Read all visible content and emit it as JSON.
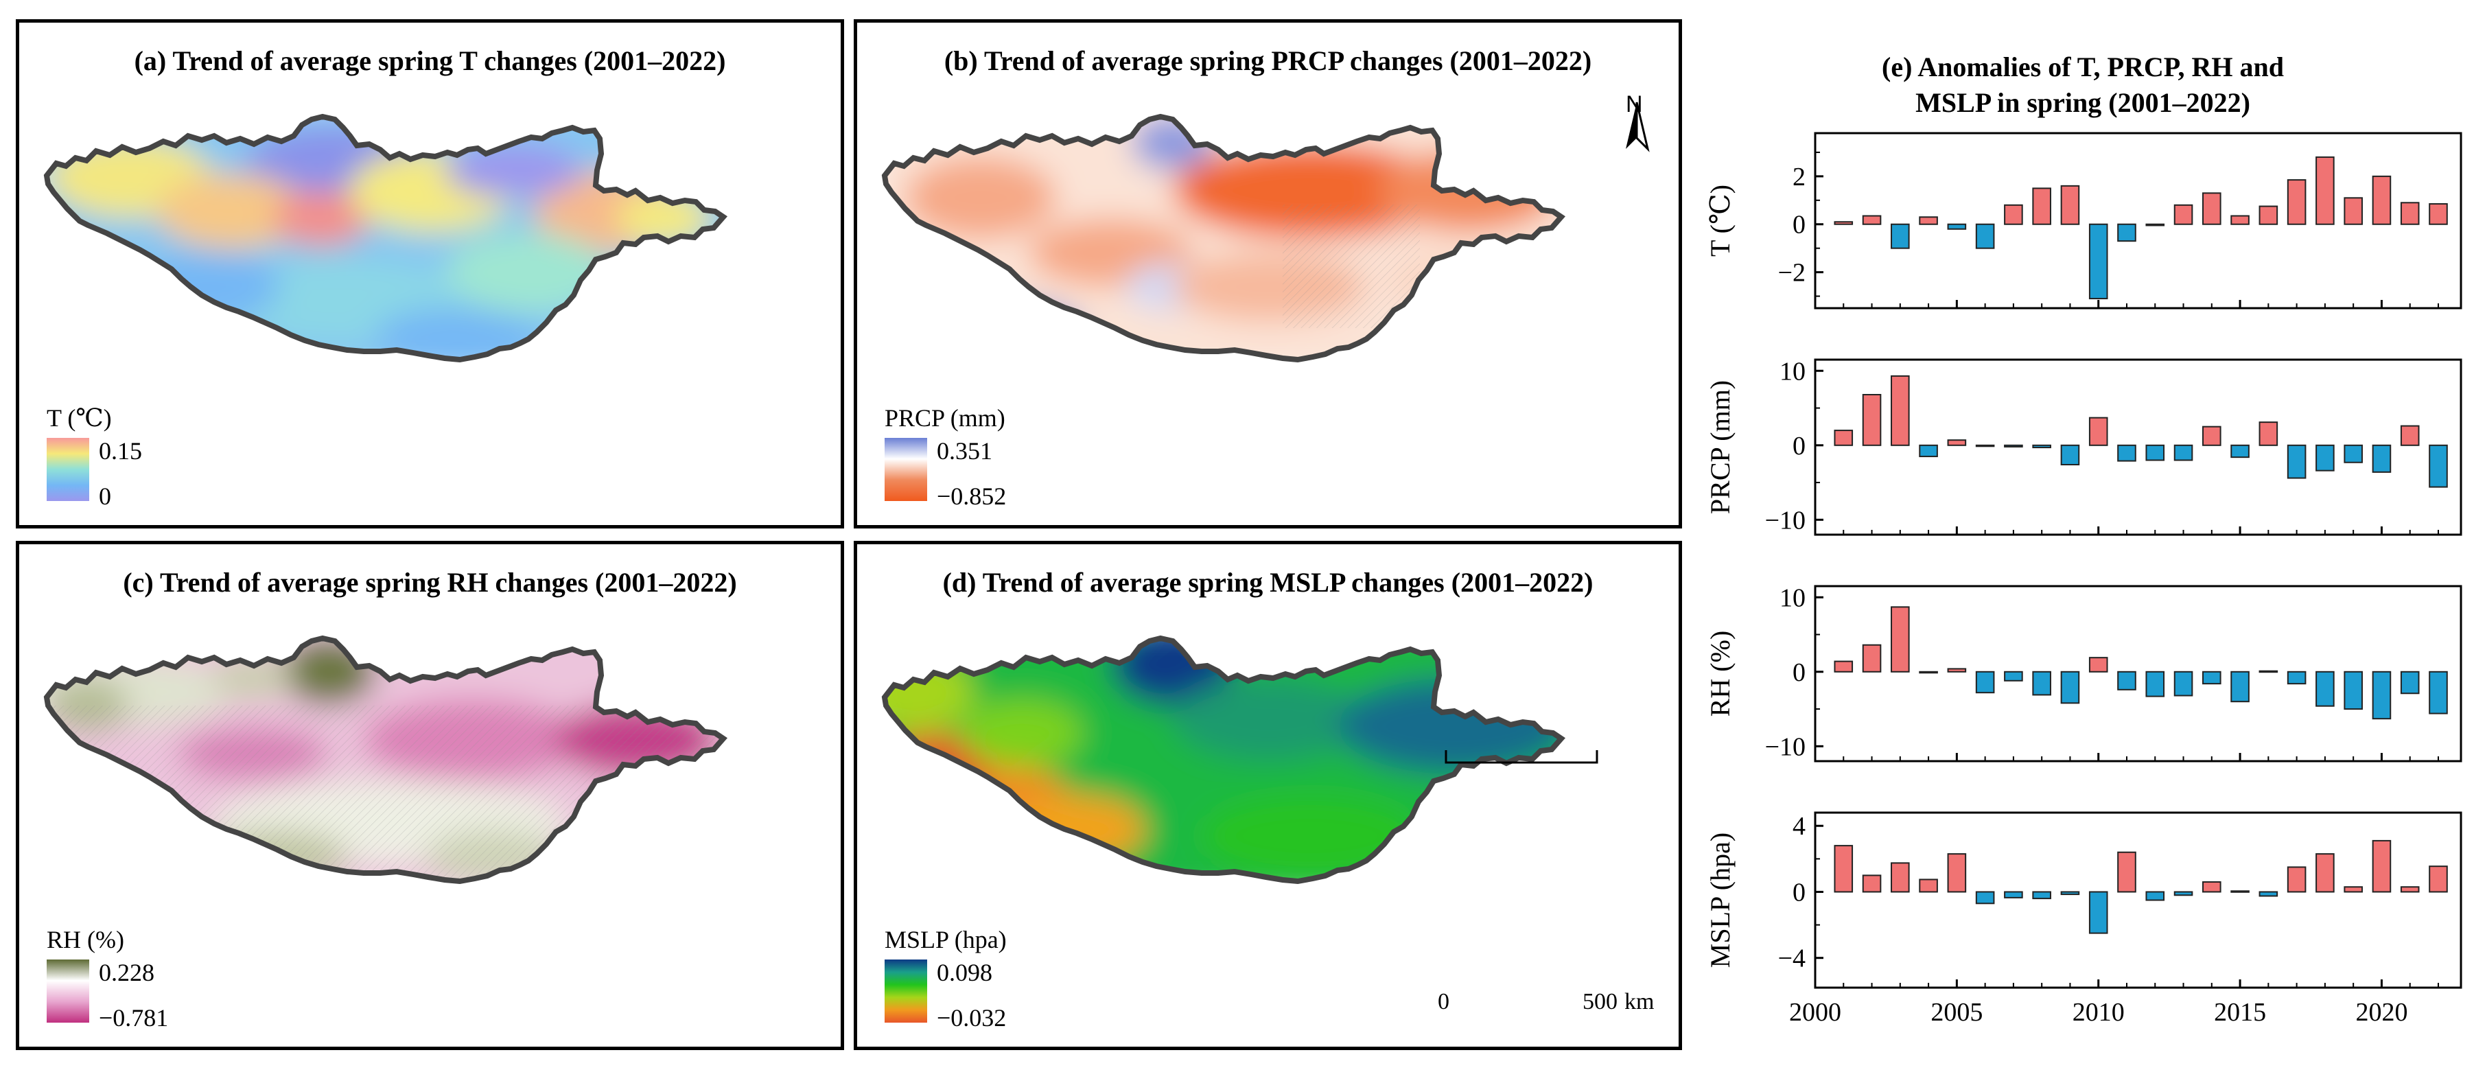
{
  "panels": {
    "a": {
      "title": "(a) Trend of average spring T changes (2001–2022)",
      "legend_title": "T (℃)",
      "legend_max": "0.15",
      "legend_min": "0",
      "colors": [
        "#f79a9a",
        "#f6e97a",
        "#8fe0d8",
        "#74b7f5",
        "#9b98ee"
      ]
    },
    "b": {
      "title": "(b) Trend of average spring PRCP changes (2001–2022)",
      "legend_title": "PRCP (mm)",
      "legend_max": "0.351",
      "legend_min": "−0.852",
      "colors": [
        "#6a7fd4",
        "#ffffff",
        "#f08a5d",
        "#f05a1e"
      ]
    },
    "c": {
      "title": "(c) Trend of average spring RH changes (2001–2022)",
      "legend_title": "RH (%)",
      "legend_max": "0.228",
      "legend_min": "−0.781",
      "colors": [
        "#5e6b35",
        "#ffffff",
        "#e8a6cf",
        "#c0307f"
      ]
    },
    "d": {
      "title": "(d) Trend of average spring MSLP changes (2001–2022)",
      "legend_title": "MSLP (hpa)",
      "legend_max": "0.098",
      "legend_min": "−0.032",
      "colors": [
        "#0d3a86",
        "#1a9f8a",
        "#22c41d",
        "#a6d51a",
        "#f09a1e",
        "#e8562a"
      ]
    },
    "north_label": "N",
    "scale_bar": {
      "start": "0",
      "end": "500",
      "unit": "km"
    }
  },
  "chart_data": {
    "type": "bar",
    "title": "(e) Anomalies of T, PRCP, RH and MSLP in spring (2001–2022)",
    "title_line1": "(e) Anomalies of T, PRCP, RH and",
    "title_line2": "MSLP in spring (2001–2022)",
    "x": [
      2001,
      2002,
      2003,
      2004,
      2005,
      2006,
      2007,
      2008,
      2009,
      2010,
      2011,
      2012,
      2013,
      2014,
      2015,
      2016,
      2017,
      2018,
      2019,
      2020,
      2021,
      2022
    ],
    "xticks": [
      2000,
      2005,
      2010,
      2015,
      2020
    ],
    "xlim": [
      2000,
      2022.8
    ],
    "positive_color": "#f07373",
    "negative_color": "#1e9dd1",
    "series": [
      {
        "name": "T (℃)",
        "ylim": [
          -3.5,
          3.8
        ],
        "yticks": [
          -2,
          0,
          2
        ],
        "values": [
          0.1,
          0.35,
          -1.0,
          0.3,
          -0.2,
          -1.0,
          0.8,
          1.5,
          1.6,
          -3.1,
          -0.7,
          -0.05,
          0.8,
          1.3,
          0.35,
          0.75,
          1.85,
          2.8,
          1.1,
          2.0,
          0.9,
          0.85
        ]
      },
      {
        "name": "PRCP (mm)",
        "ylim": [
          -12,
          11.5
        ],
        "yticks": [
          -10,
          0,
          10
        ],
        "values": [
          2.0,
          6.8,
          9.3,
          -1.5,
          0.7,
          -0.1,
          -0.2,
          -0.3,
          -2.6,
          3.7,
          -2.1,
          -2.0,
          -2.0,
          2.5,
          -1.6,
          3.1,
          -4.4,
          -3.4,
          -2.3,
          -3.6,
          2.6,
          -5.6
        ]
      },
      {
        "name": "RH (%)",
        "ylim": [
          -12,
          11.5
        ],
        "yticks": [
          -10,
          0,
          10
        ],
        "values": [
          1.4,
          3.6,
          8.7,
          -0.1,
          0.4,
          -2.8,
          -1.2,
          -3.1,
          -4.2,
          1.9,
          -2.4,
          -3.3,
          -3.2,
          -1.6,
          -4.0,
          0.1,
          -1.6,
          -4.6,
          -5.0,
          -6.3,
          -2.9,
          -5.6
        ]
      },
      {
        "name": "MSLP (hpa)",
        "ylim": [
          -5.8,
          4.8
        ],
        "yticks": [
          -4,
          0,
          4
        ],
        "values": [
          2.8,
          1.0,
          1.75,
          0.75,
          2.3,
          -0.7,
          -0.35,
          -0.4,
          -0.15,
          -2.5,
          2.4,
          -0.5,
          -0.2,
          0.6,
          0.05,
          -0.25,
          1.5,
          2.3,
          0.3,
          3.1,
          0.3,
          1.55
        ]
      }
    ]
  }
}
